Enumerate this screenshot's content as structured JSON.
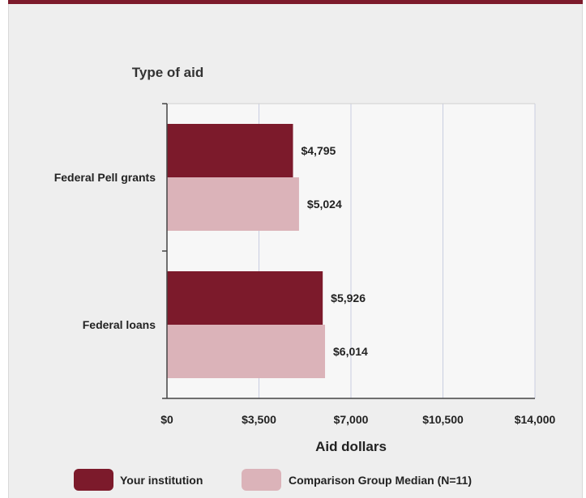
{
  "chart_data": {
    "type": "bar",
    "orientation": "horizontal",
    "ylabel": "Type of aid",
    "xlabel": "Aid dollars",
    "categories": [
      "Federal Pell grants",
      "Federal loans"
    ],
    "series": [
      {
        "name": "Your institution",
        "color": "#7c1a2b",
        "values": [
          4795,
          5926
        ],
        "labels": [
          "$4,795",
          "$5,926"
        ]
      },
      {
        "name": "Comparison Group Median (N=11)",
        "color": "#dbb3b9",
        "values": [
          5024,
          6014
        ],
        "labels": [
          "$5,024",
          "$6,014"
        ]
      }
    ],
    "xlim": [
      0,
      14000
    ],
    "xticks": [
      0,
      3500,
      7000,
      10500,
      14000
    ],
    "xtick_labels": [
      "$0",
      "$3,500",
      "$7,000",
      "$10,500",
      "$14,000"
    ],
    "grid": "vertical",
    "legend_position": "bottom"
  }
}
